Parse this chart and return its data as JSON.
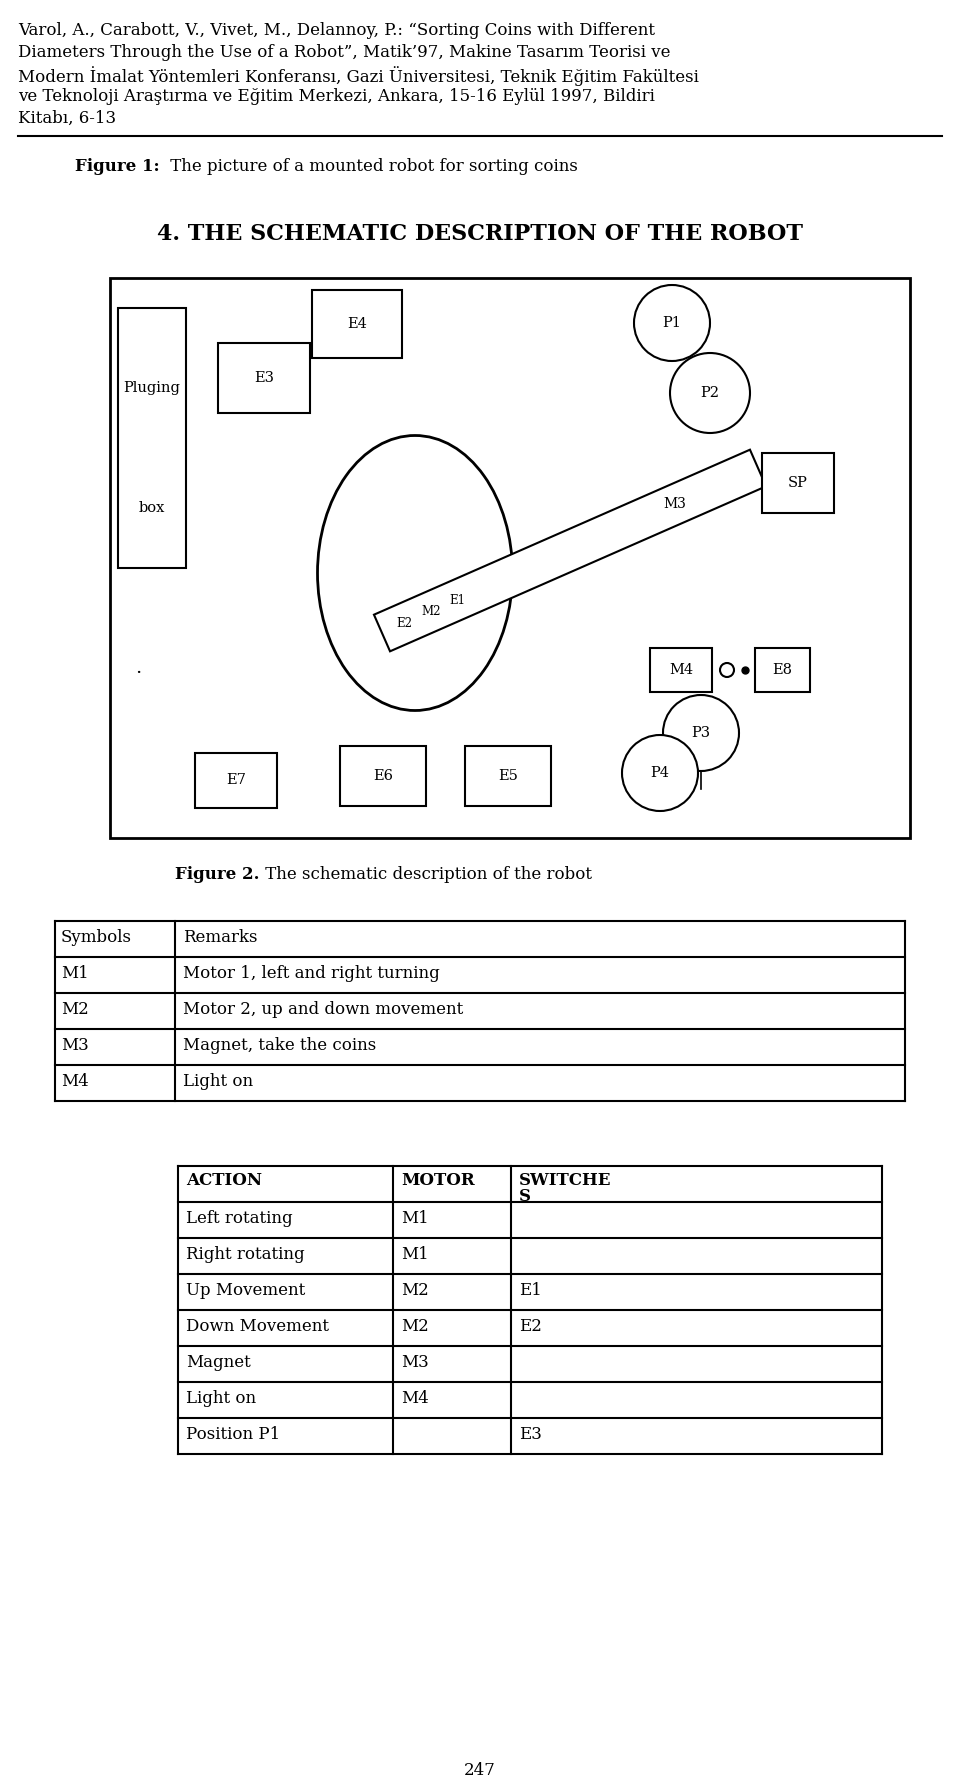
{
  "citation_lines": [
    "Varol, A., Carabott, V., Vivet, M., Delannoy, P.: “Sorting Coins with Different",
    "Diameters Through the Use of a Robot”, Matik’97, Makine Tasarım Teorisi ve",
    "Modern İmalat Yöntemleri Konferansı, Gazi Üniversitesi, Teknik Eğitim Fakültesi",
    "ve Teknoloji Araştırma ve Eğitim Merkezi, Ankara, 15-16 Eylül 1997, Bildiri",
    "Kitabı, 6-13"
  ],
  "figure1_bold": "Figure 1:",
  "figure1_normal": " The picture of a mounted robot for sorting coins",
  "section_title": "4. THE SCHEMATIC DESCRIPTION OF THE ROBOT",
  "figure2_bold": "Figure 2.",
  "figure2_normal": " The schematic description of the robot",
  "table1_headers": [
    "Symbols",
    "Remarks"
  ],
  "table1_rows": [
    [
      "M1",
      "Motor 1, left and right turning"
    ],
    [
      "M2",
      "Motor 2, up and down movement"
    ],
    [
      "M3",
      "Magnet, take the coins"
    ],
    [
      "M4",
      "Light on"
    ]
  ],
  "table2_headers": [
    "ACTION",
    "MOTOR",
    "SWITCHE\nS"
  ],
  "table2_rows": [
    [
      "Left rotating",
      "M1",
      ""
    ],
    [
      "Right rotating",
      "M1",
      ""
    ],
    [
      "Up Movement",
      "M2",
      "E1"
    ],
    [
      "Down Movement",
      "M2",
      "E2"
    ],
    [
      "Magnet",
      "M3",
      ""
    ],
    [
      "Light on",
      "M4",
      ""
    ],
    [
      "Position P1",
      "",
      "E3"
    ]
  ],
  "page_number": "247",
  "bg_color": "#ffffff"
}
